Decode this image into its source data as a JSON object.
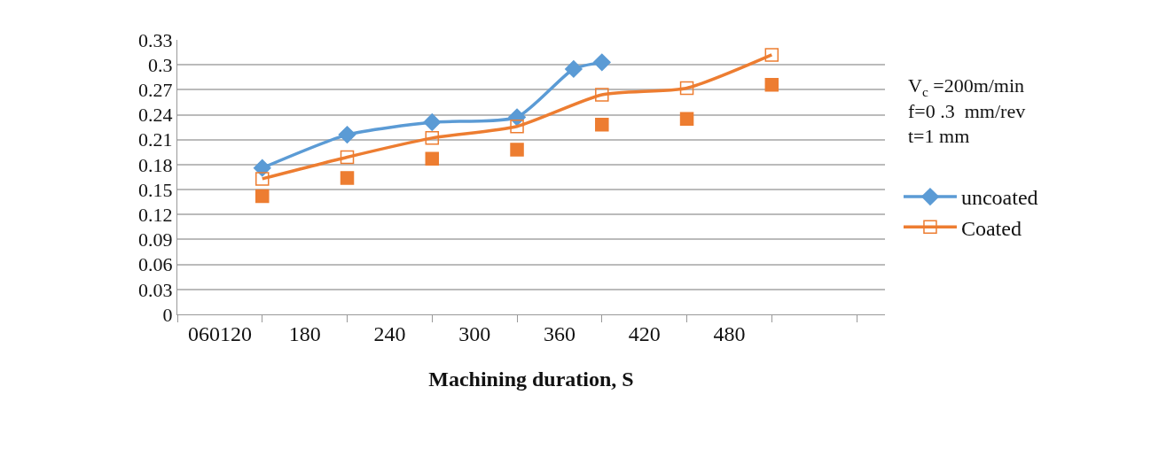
{
  "chart_data": {
    "type": "line",
    "xlabel": "Machining duration, S",
    "categories": [
      null,
      null,
      null,
      "060120",
      null,
      null,
      null,
      null,
      null,
      "180",
      null,
      null,
      null,
      null,
      null,
      "240",
      null,
      null,
      null,
      null,
      null,
      "300",
      null,
      null,
      null,
      null,
      null,
      "360",
      null,
      null,
      null,
      null,
      null,
      "420",
      null,
      null,
      null,
      null,
      null,
      "480",
      null,
      null,
      null,
      null,
      null,
      null,
      null,
      null,
      null,
      null,
      null
    ],
    "series": [
      {
        "name": "uncoated",
        "color": "#5b9bd5",
        "marker": "diamond",
        "values": [
          null,
          null,
          null,
          null,
          null,
          null,
          0.176,
          null,
          null,
          null,
          null,
          null,
          0.216,
          null,
          null,
          null,
          null,
          null,
          0.231,
          null,
          null,
          null,
          null,
          null,
          0.237,
          null,
          null,
          null,
          0.295,
          null,
          0.303,
          null,
          null,
          null,
          null,
          null,
          null,
          null,
          null,
          null,
          null,
          null,
          null,
          null,
          null,
          null,
          null,
          null,
          null,
          null,
          null
        ]
      },
      {
        "name": "Coated",
        "color": "#ed7d31",
        "marker": "square-open",
        "values": [
          null,
          null,
          null,
          null,
          null,
          null,
          0.163,
          null,
          null,
          null,
          null,
          null,
          0.189,
          null,
          null,
          null,
          null,
          null,
          0.212,
          null,
          null,
          null,
          null,
          null,
          0.226,
          null,
          null,
          null,
          null,
          null,
          0.264,
          null,
          null,
          null,
          null,
          null,
          0.272,
          null,
          null,
          null,
          null,
          null,
          0.312,
          null,
          null,
          null,
          null,
          null,
          null,
          null,
          null
        ]
      },
      {
        "type": "scatter",
        "color": "#ed7d31",
        "marker": "square",
        "values": [
          null,
          null,
          null,
          null,
          null,
          null,
          0.142,
          null,
          null,
          null,
          null,
          null,
          0.164,
          null,
          null,
          null,
          null,
          null,
          0.187,
          null,
          null,
          null,
          null,
          null,
          0.198,
          null,
          null,
          null,
          null,
          null,
          0.228,
          null,
          null,
          null,
          null,
          null,
          0.235,
          null,
          null,
          null,
          null,
          null,
          0.276,
          null,
          null,
          null,
          null,
          null,
          null,
          null,
          null
        ]
      }
    ],
    "ylim": [
      0,
      0.33
    ],
    "yticks": [
      0,
      0.03,
      0.06,
      0.09,
      0.12,
      0.15,
      0.18,
      0.21,
      0.24,
      0.27,
      0.3,
      0.33
    ],
    "grid": "y",
    "legend": "right",
    "annotations": [
      "V$_{c}$ =200m/min\nf=0 .3  mm/rev\nt=1 mm"
    ]
  }
}
